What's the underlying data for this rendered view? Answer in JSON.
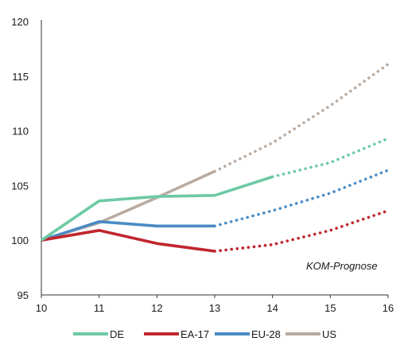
{
  "chart_data": {
    "type": "line",
    "x": [
      10,
      11,
      12,
      13,
      14,
      15,
      16
    ],
    "xlim": [
      10,
      16
    ],
    "ylim": [
      95,
      120
    ],
    "yticks": [
      95,
      100,
      105,
      110,
      115,
      120
    ],
    "xticks": [
      10,
      11,
      12,
      13,
      14,
      15,
      16
    ],
    "grid": false,
    "legend_position": "bottom",
    "annotation": "KOM-Prognose",
    "series": [
      {
        "name": "DE",
        "color": "#6dc9a4",
        "actual": [
          [
            10,
            100.0
          ],
          [
            11,
            103.6
          ],
          [
            12,
            104.0
          ],
          [
            13,
            104.1
          ],
          [
            14,
            105.8
          ]
        ],
        "forecast": [
          [
            14,
            105.8
          ],
          [
            15,
            107.1
          ],
          [
            16,
            109.3
          ]
        ]
      },
      {
        "name": "EA-17",
        "color": "#c0262d",
        "actual": [
          [
            10,
            100.0
          ],
          [
            11,
            100.9
          ],
          [
            12,
            99.7
          ],
          [
            13,
            99.0
          ]
        ],
        "forecast": [
          [
            13,
            99.0
          ],
          [
            14,
            99.6
          ],
          [
            15,
            100.9
          ],
          [
            16,
            102.7
          ]
        ]
      },
      {
        "name": "EU-28",
        "color": "#4a8bc4",
        "actual": [
          [
            10,
            100.0
          ],
          [
            11,
            101.7
          ],
          [
            12,
            101.3
          ],
          [
            13,
            101.3
          ]
        ],
        "forecast": [
          [
            13,
            101.3
          ],
          [
            14,
            102.7
          ],
          [
            15,
            104.3
          ],
          [
            16,
            106.4
          ]
        ]
      },
      {
        "name": "US",
        "color": "#b9aba1",
        "actual": [
          [
            10,
            100.0
          ],
          [
            11,
            101.6
          ],
          [
            12,
            103.9
          ],
          [
            13,
            106.3
          ]
        ],
        "forecast": [
          [
            13,
            106.3
          ],
          [
            14,
            108.9
          ],
          [
            15,
            112.3
          ],
          [
            16,
            116.1
          ]
        ]
      }
    ]
  }
}
